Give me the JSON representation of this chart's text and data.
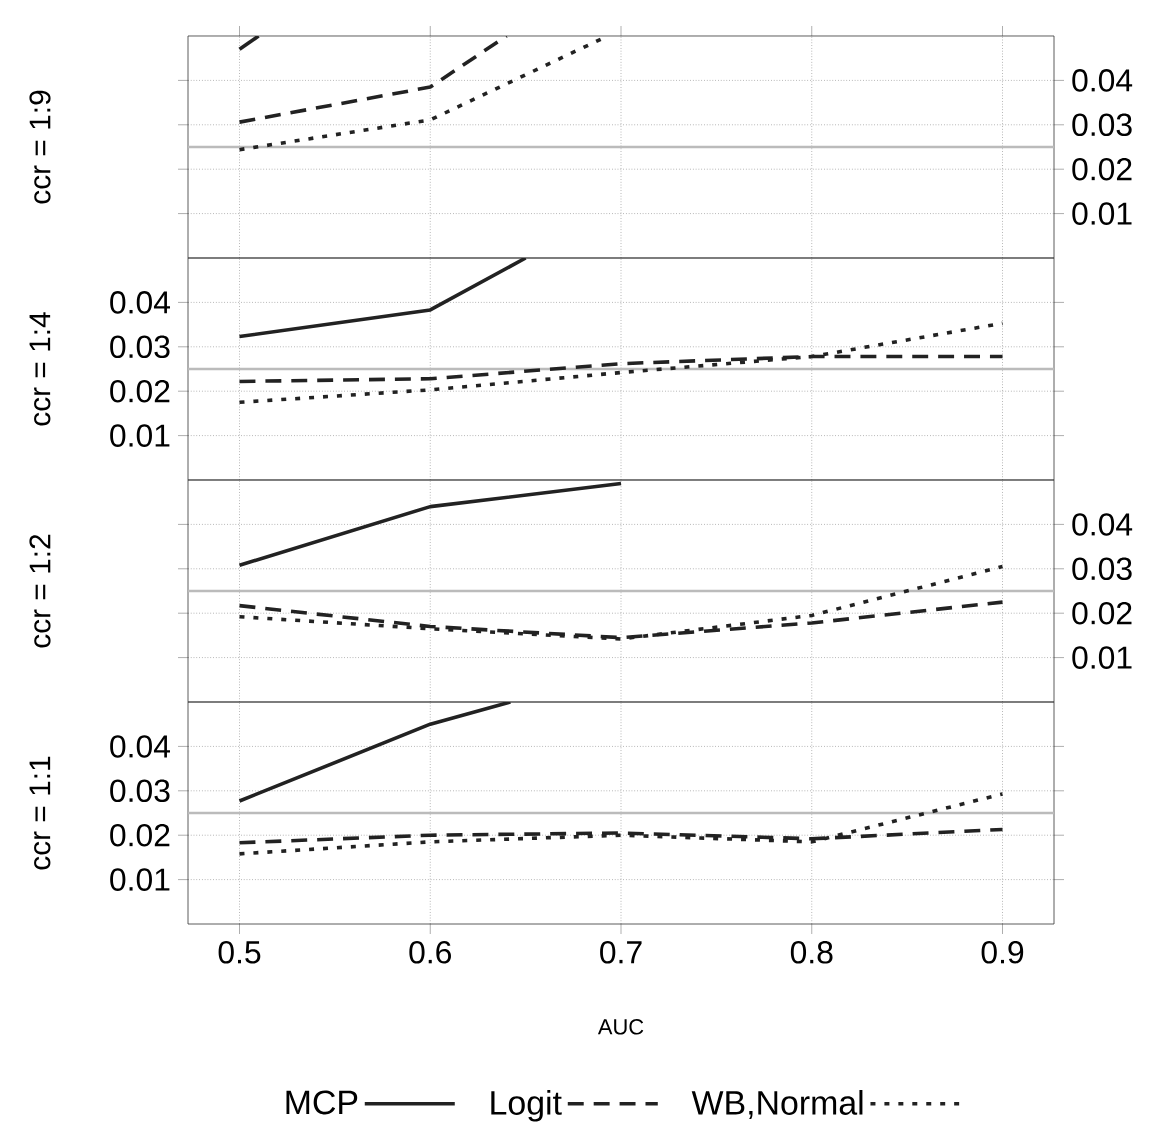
{
  "chart_data": [
    {
      "type": "line",
      "ylabel": "ccr = 1:9",
      "xlim": [
        0.473,
        0.927
      ],
      "ylim": [
        0,
        0.05
      ],
      "xticks": [
        0.5,
        0.6,
        0.7,
        0.8,
        0.9
      ],
      "yticks": [
        0.01,
        0.02,
        0.03,
        0.04
      ],
      "tick_labels": "y",
      "grid": true,
      "ref_lines": [
        {
          "axis": "y",
          "value": 0.025,
          "color": "#bbbbbb"
        }
      ],
      "series": [
        {
          "color": "#222222",
          "line_style": "solid",
          "x": [
            0.5,
            0.51
          ],
          "values": [
            0.047,
            0.05
          ]
        },
        {
          "color": "#222222",
          "line_style": "dashed",
          "x": [
            0.5,
            0.6,
            0.64
          ],
          "values": [
            0.0306,
            0.0385,
            0.05
          ]
        },
        {
          "color": "#222222",
          "line_style": "dotted",
          "x": [
            0.5,
            0.6,
            0.693
          ],
          "values": [
            0.0244,
            0.0311,
            0.05
          ]
        }
      ]
    },
    {
      "type": "line",
      "ylabel": "ccr = 1:4",
      "xlim": [
        0.473,
        0.927
      ],
      "ylim": [
        0,
        0.05
      ],
      "xticks": [
        0.5,
        0.6,
        0.7,
        0.8,
        0.9
      ],
      "yticks": [
        0.01,
        0.02,
        0.03,
        0.04
      ],
      "tick_labels": "y",
      "grid": true,
      "ref_lines": [
        {
          "axis": "y",
          "value": 0.025,
          "color": "#bbbbbb"
        }
      ],
      "series": [
        {
          "color": "#222222",
          "line_style": "solid",
          "x": [
            0.5,
            0.6,
            0.65
          ],
          "values": [
            0.0323,
            0.0383,
            0.05
          ]
        },
        {
          "color": "#222222",
          "line_style": "dashed",
          "x": [
            0.5,
            0.6,
            0.7,
            0.8,
            0.9
          ],
          "values": [
            0.0222,
            0.0228,
            0.0262,
            0.0278,
            0.0278
          ]
        },
        {
          "color": "#222222",
          "line_style": "dotted",
          "x": [
            0.5,
            0.6,
            0.7,
            0.8,
            0.9
          ],
          "values": [
            0.0175,
            0.0203,
            0.0242,
            0.0278,
            0.0353
          ]
        }
      ]
    },
    {
      "type": "line",
      "ylabel": "ccr = 1:2",
      "xlim": [
        0.473,
        0.927
      ],
      "ylim": [
        0,
        0.05
      ],
      "xticks": [
        0.5,
        0.6,
        0.7,
        0.8,
        0.9
      ],
      "yticks": [
        0.01,
        0.02,
        0.03,
        0.04
      ],
      "tick_labels": "y",
      "grid": true,
      "ref_lines": [
        {
          "axis": "y",
          "value": 0.025,
          "color": "#bbbbbb"
        }
      ],
      "series": [
        {
          "color": "#222222",
          "line_style": "solid",
          "x": [
            0.5,
            0.6,
            0.7
          ],
          "values": [
            0.0308,
            0.044,
            0.0492
          ]
        },
        {
          "color": "#222222",
          "line_style": "dashed",
          "x": [
            0.5,
            0.6,
            0.7,
            0.8,
            0.9
          ],
          "values": [
            0.0217,
            0.017,
            0.0145,
            0.0178,
            0.0225
          ]
        },
        {
          "color": "#222222",
          "line_style": "dotted",
          "x": [
            0.5,
            0.6,
            0.7,
            0.8,
            0.9
          ],
          "values": [
            0.0192,
            0.0165,
            0.0142,
            0.0195,
            0.0305
          ]
        }
      ]
    },
    {
      "type": "line",
      "ylabel": "ccr = 1:1",
      "xlabel": "AUC",
      "xlim": [
        0.473,
        0.927
      ],
      "ylim": [
        0,
        0.05
      ],
      "xticks": [
        0.5,
        0.6,
        0.7,
        0.8,
        0.9
      ],
      "yticks": [
        0.01,
        0.02,
        0.03,
        0.04
      ],
      "grid": true,
      "legend": "bottom",
      "ref_lines": [
        {
          "axis": "y",
          "value": 0.025,
          "color": "#bbbbbb"
        }
      ],
      "series": [
        {
          "name": "MCP",
          "color": "#222222",
          "line_style": "solid",
          "x": [
            0.5,
            0.6,
            0.642
          ],
          "values": [
            0.0277,
            0.045,
            0.05
          ]
        },
        {
          "name": "Logit",
          "color": "#222222",
          "line_style": "dashed",
          "x": [
            0.5,
            0.6,
            0.7,
            0.8,
            0.9
          ],
          "values": [
            0.0183,
            0.02,
            0.0205,
            0.0192,
            0.0213
          ]
        },
        {
          "name": "WB,Normal",
          "color": "#222222",
          "line_style": "dotted",
          "x": [
            0.5,
            0.6,
            0.7,
            0.8,
            0.9
          ],
          "values": [
            0.0158,
            0.0185,
            0.02,
            0.0185,
            0.0293
          ]
        }
      ]
    }
  ]
}
